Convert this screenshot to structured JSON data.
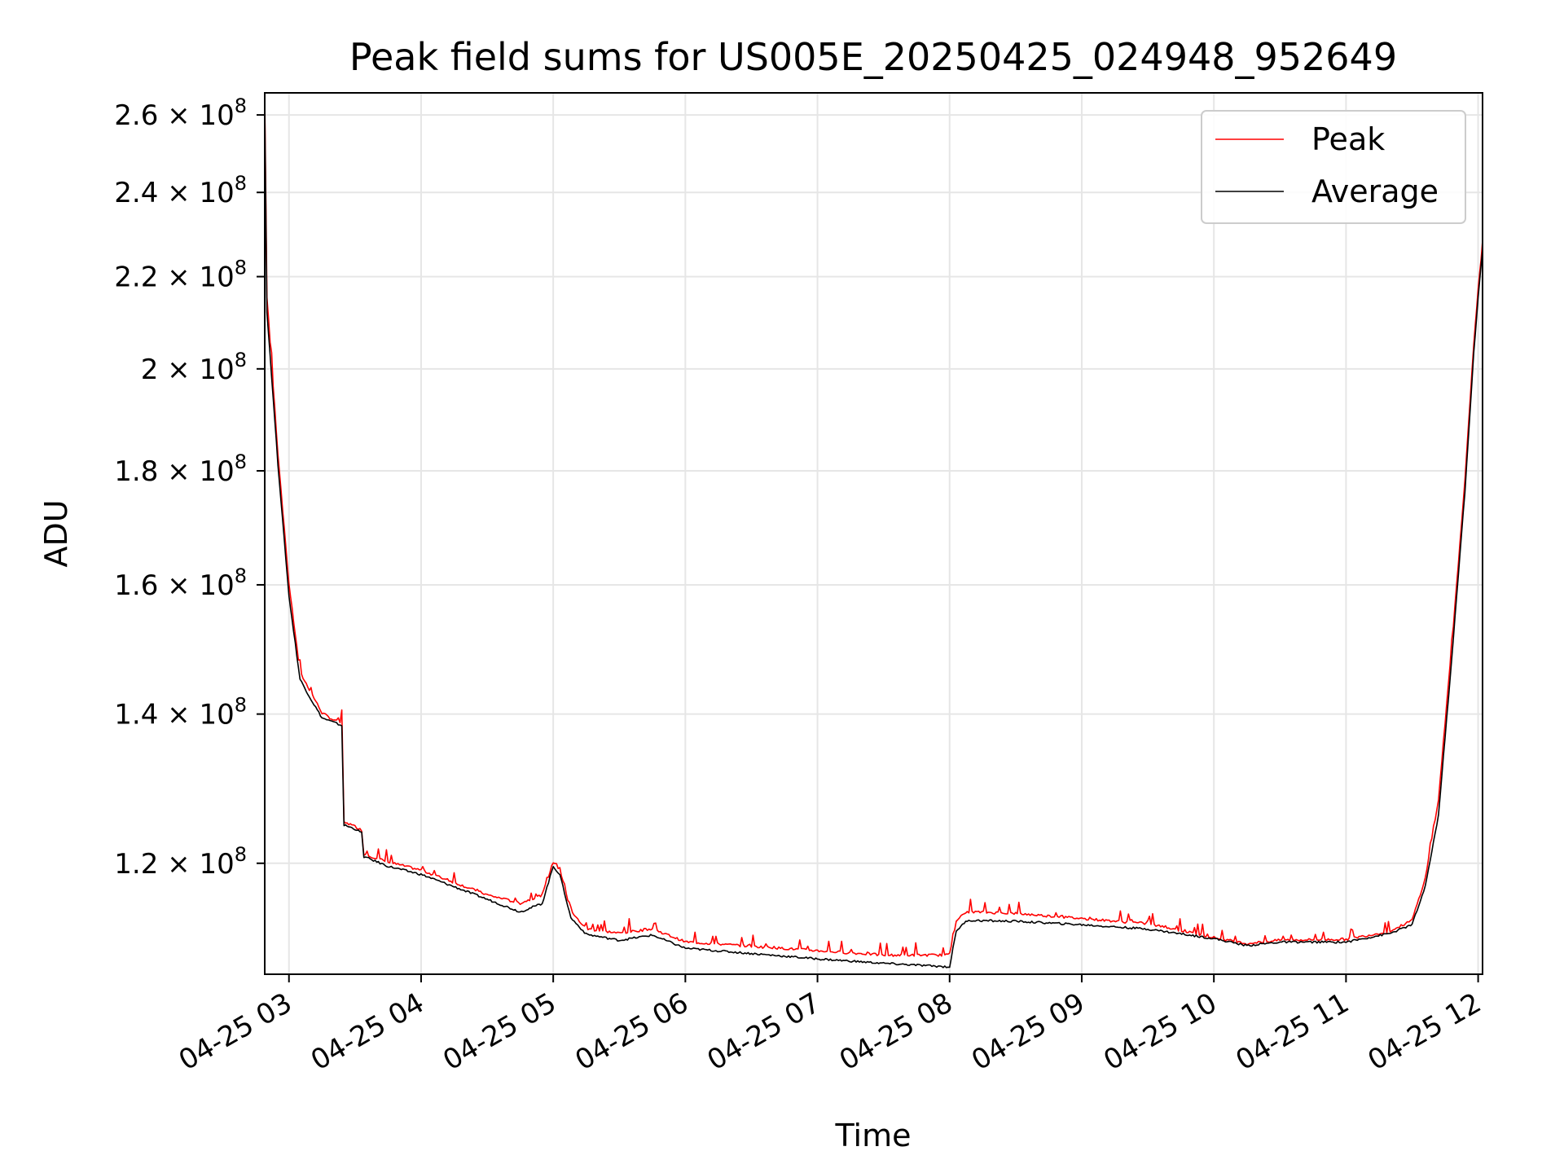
{
  "chart_data": {
    "type": "line",
    "title": "Peak field sums for US005E_20250425_024948_952649",
    "xlabel": "Time",
    "ylabel": "ADU",
    "y_scale": "log",
    "grid": true,
    "legend_position": "top-right",
    "colors": {
      "peak": "#ff0000",
      "average": "#000000",
      "grid": "#e6e6e6"
    },
    "xlim": [
      "2025-04-25 02:49",
      "2025-04-25 12:02"
    ],
    "ylim": [
      107000000,
      266000000
    ],
    "x_tick_labels": [
      {
        "value": "2025-04-25 03:00",
        "label": "04-25 03"
      },
      {
        "value": "2025-04-25 04:00",
        "label": "04-25 04"
      },
      {
        "value": "2025-04-25 05:00",
        "label": "04-25 05"
      },
      {
        "value": "2025-04-25 06:00",
        "label": "04-25 06"
      },
      {
        "value": "2025-04-25 07:00",
        "label": "04-25 07"
      },
      {
        "value": "2025-04-25 08:00",
        "label": "04-25 08"
      },
      {
        "value": "2025-04-25 09:00",
        "label": "04-25 09"
      },
      {
        "value": "2025-04-25 10:00",
        "label": "04-25 10"
      },
      {
        "value": "2025-04-25 11:00",
        "label": "04-25 11"
      },
      {
        "value": "2025-04-25 12:00",
        "label": "04-25 12"
      }
    ],
    "y_tick_labels": [
      {
        "value": 120000000,
        "mantissa": "1.2",
        "exponent": "8"
      },
      {
        "value": 140000000,
        "mantissa": "1.4",
        "exponent": "8"
      },
      {
        "value": 160000000,
        "mantissa": "1.6",
        "exponent": "8"
      },
      {
        "value": 180000000,
        "mantissa": "1.8",
        "exponent": "8"
      },
      {
        "value": 200000000,
        "mantissa": "2",
        "exponent": "8"
      },
      {
        "value": 220000000,
        "mantissa": "2.2",
        "exponent": "8"
      },
      {
        "value": 240000000,
        "mantissa": "2.4",
        "exponent": "8"
      },
      {
        "value": 260000000,
        "mantissa": "2.6",
        "exponent": "8"
      }
    ],
    "times_sign": "×",
    "tick_base": "10",
    "series": [
      {
        "name": "Peak",
        "x": [
          "2025-04-25 02:49",
          "2025-04-25 02:50",
          "2025-04-25 02:55",
          "2025-04-25 03:00",
          "2025-04-25 03:05",
          "2025-04-25 03:10",
          "2025-04-25 03:15",
          "2025-04-25 03:20",
          "2025-04-25 03:24",
          "2025-04-25 03:25",
          "2025-04-25 03:30",
          "2025-04-25 03:33",
          "2025-04-25 03:34",
          "2025-04-25 03:45",
          "2025-04-25 04:00",
          "2025-04-25 04:15",
          "2025-04-25 04:30",
          "2025-04-25 04:45",
          "2025-04-25 04:55",
          "2025-04-25 05:00",
          "2025-04-25 05:03",
          "2025-04-25 05:08",
          "2025-04-25 05:15",
          "2025-04-25 05:30",
          "2025-04-25 05:45",
          "2025-04-25 06:00",
          "2025-04-25 06:30",
          "2025-04-25 07:00",
          "2025-04-25 07:30",
          "2025-04-25 08:00",
          "2025-04-25 08:03",
          "2025-04-25 08:08",
          "2025-04-25 08:30",
          "2025-04-25 09:00",
          "2025-04-25 09:30",
          "2025-04-25 10:00",
          "2025-04-25 10:15",
          "2025-04-25 10:30",
          "2025-04-25 11:00",
          "2025-04-25 11:20",
          "2025-04-25 11:30",
          "2025-04-25 11:36",
          "2025-04-25 11:42",
          "2025-04-25 11:48",
          "2025-04-25 11:54",
          "2025-04-25 11:58",
          "2025-04-25 12:00",
          "2025-04-25 12:02"
        ],
        "y": [
          265000000,
          215000000,
          183000000,
          160000000,
          146000000,
          143000000,
          140000000,
          139000000,
          138500000,
          125000000,
          124500000,
          124000000,
          121000000,
          120000000,
          119000000,
          117500000,
          116000000,
          115000000,
          116000000,
          120000000,
          119000000,
          114000000,
          112000000,
          111500000,
          112000000,
          110500000,
          110000000,
          109500000,
          109000000,
          109000000,
          113000000,
          114000000,
          113800000,
          113200000,
          112600000,
          111000000,
          110300000,
          110700000,
          110800000,
          111700000,
          113000000,
          118000000,
          128000000,
          150000000,
          178000000,
          205000000,
          217000000,
          227000000
        ]
      },
      {
        "name": "Average",
        "x": [
          "2025-04-25 02:49",
          "2025-04-25 02:50",
          "2025-04-25 02:55",
          "2025-04-25 03:00",
          "2025-04-25 03:05",
          "2025-04-25 03:10",
          "2025-04-25 03:15",
          "2025-04-25 03:20",
          "2025-04-25 03:24",
          "2025-04-25 03:25",
          "2025-04-25 03:30",
          "2025-04-25 03:33",
          "2025-04-25 03:34",
          "2025-04-25 03:45",
          "2025-04-25 04:00",
          "2025-04-25 04:15",
          "2025-04-25 04:30",
          "2025-04-25 04:45",
          "2025-04-25 04:55",
          "2025-04-25 05:00",
          "2025-04-25 05:03",
          "2025-04-25 05:08",
          "2025-04-25 05:15",
          "2025-04-25 05:30",
          "2025-04-25 05:45",
          "2025-04-25 06:00",
          "2025-04-25 06:30",
          "2025-04-25 07:00",
          "2025-04-25 07:30",
          "2025-04-25 08:00",
          "2025-04-25 08:03",
          "2025-04-25 08:08",
          "2025-04-25 08:30",
          "2025-04-25 09:00",
          "2025-04-25 09:30",
          "2025-04-25 10:00",
          "2025-04-25 10:15",
          "2025-04-25 10:30",
          "2025-04-25 11:00",
          "2025-04-25 11:20",
          "2025-04-25 11:30",
          "2025-04-25 11:36",
          "2025-04-25 11:42",
          "2025-04-25 11:48",
          "2025-04-25 11:54",
          "2025-04-25 11:58",
          "2025-04-25 12:00",
          "2025-04-25 12:02"
        ],
        "y": [
          262000000,
          212000000,
          181000000,
          158000000,
          145000000,
          142000000,
          139300000,
          138700000,
          138200000,
          124700000,
          124200000,
          123700000,
          120700000,
          119500000,
          118500000,
          117000000,
          115500000,
          114000000,
          115000000,
          119500000,
          118500000,
          113300000,
          111400000,
          110700000,
          111300000,
          109800000,
          109200000,
          108600000,
          108100000,
          107700000,
          111800000,
          113000000,
          112900000,
          112500000,
          112000000,
          110900000,
          110100000,
          110500000,
          110500000,
          111500000,
          112500000,
          117000000,
          126000000,
          148000000,
          176000000,
          203000000,
          215000000,
          226000000
        ]
      }
    ]
  }
}
